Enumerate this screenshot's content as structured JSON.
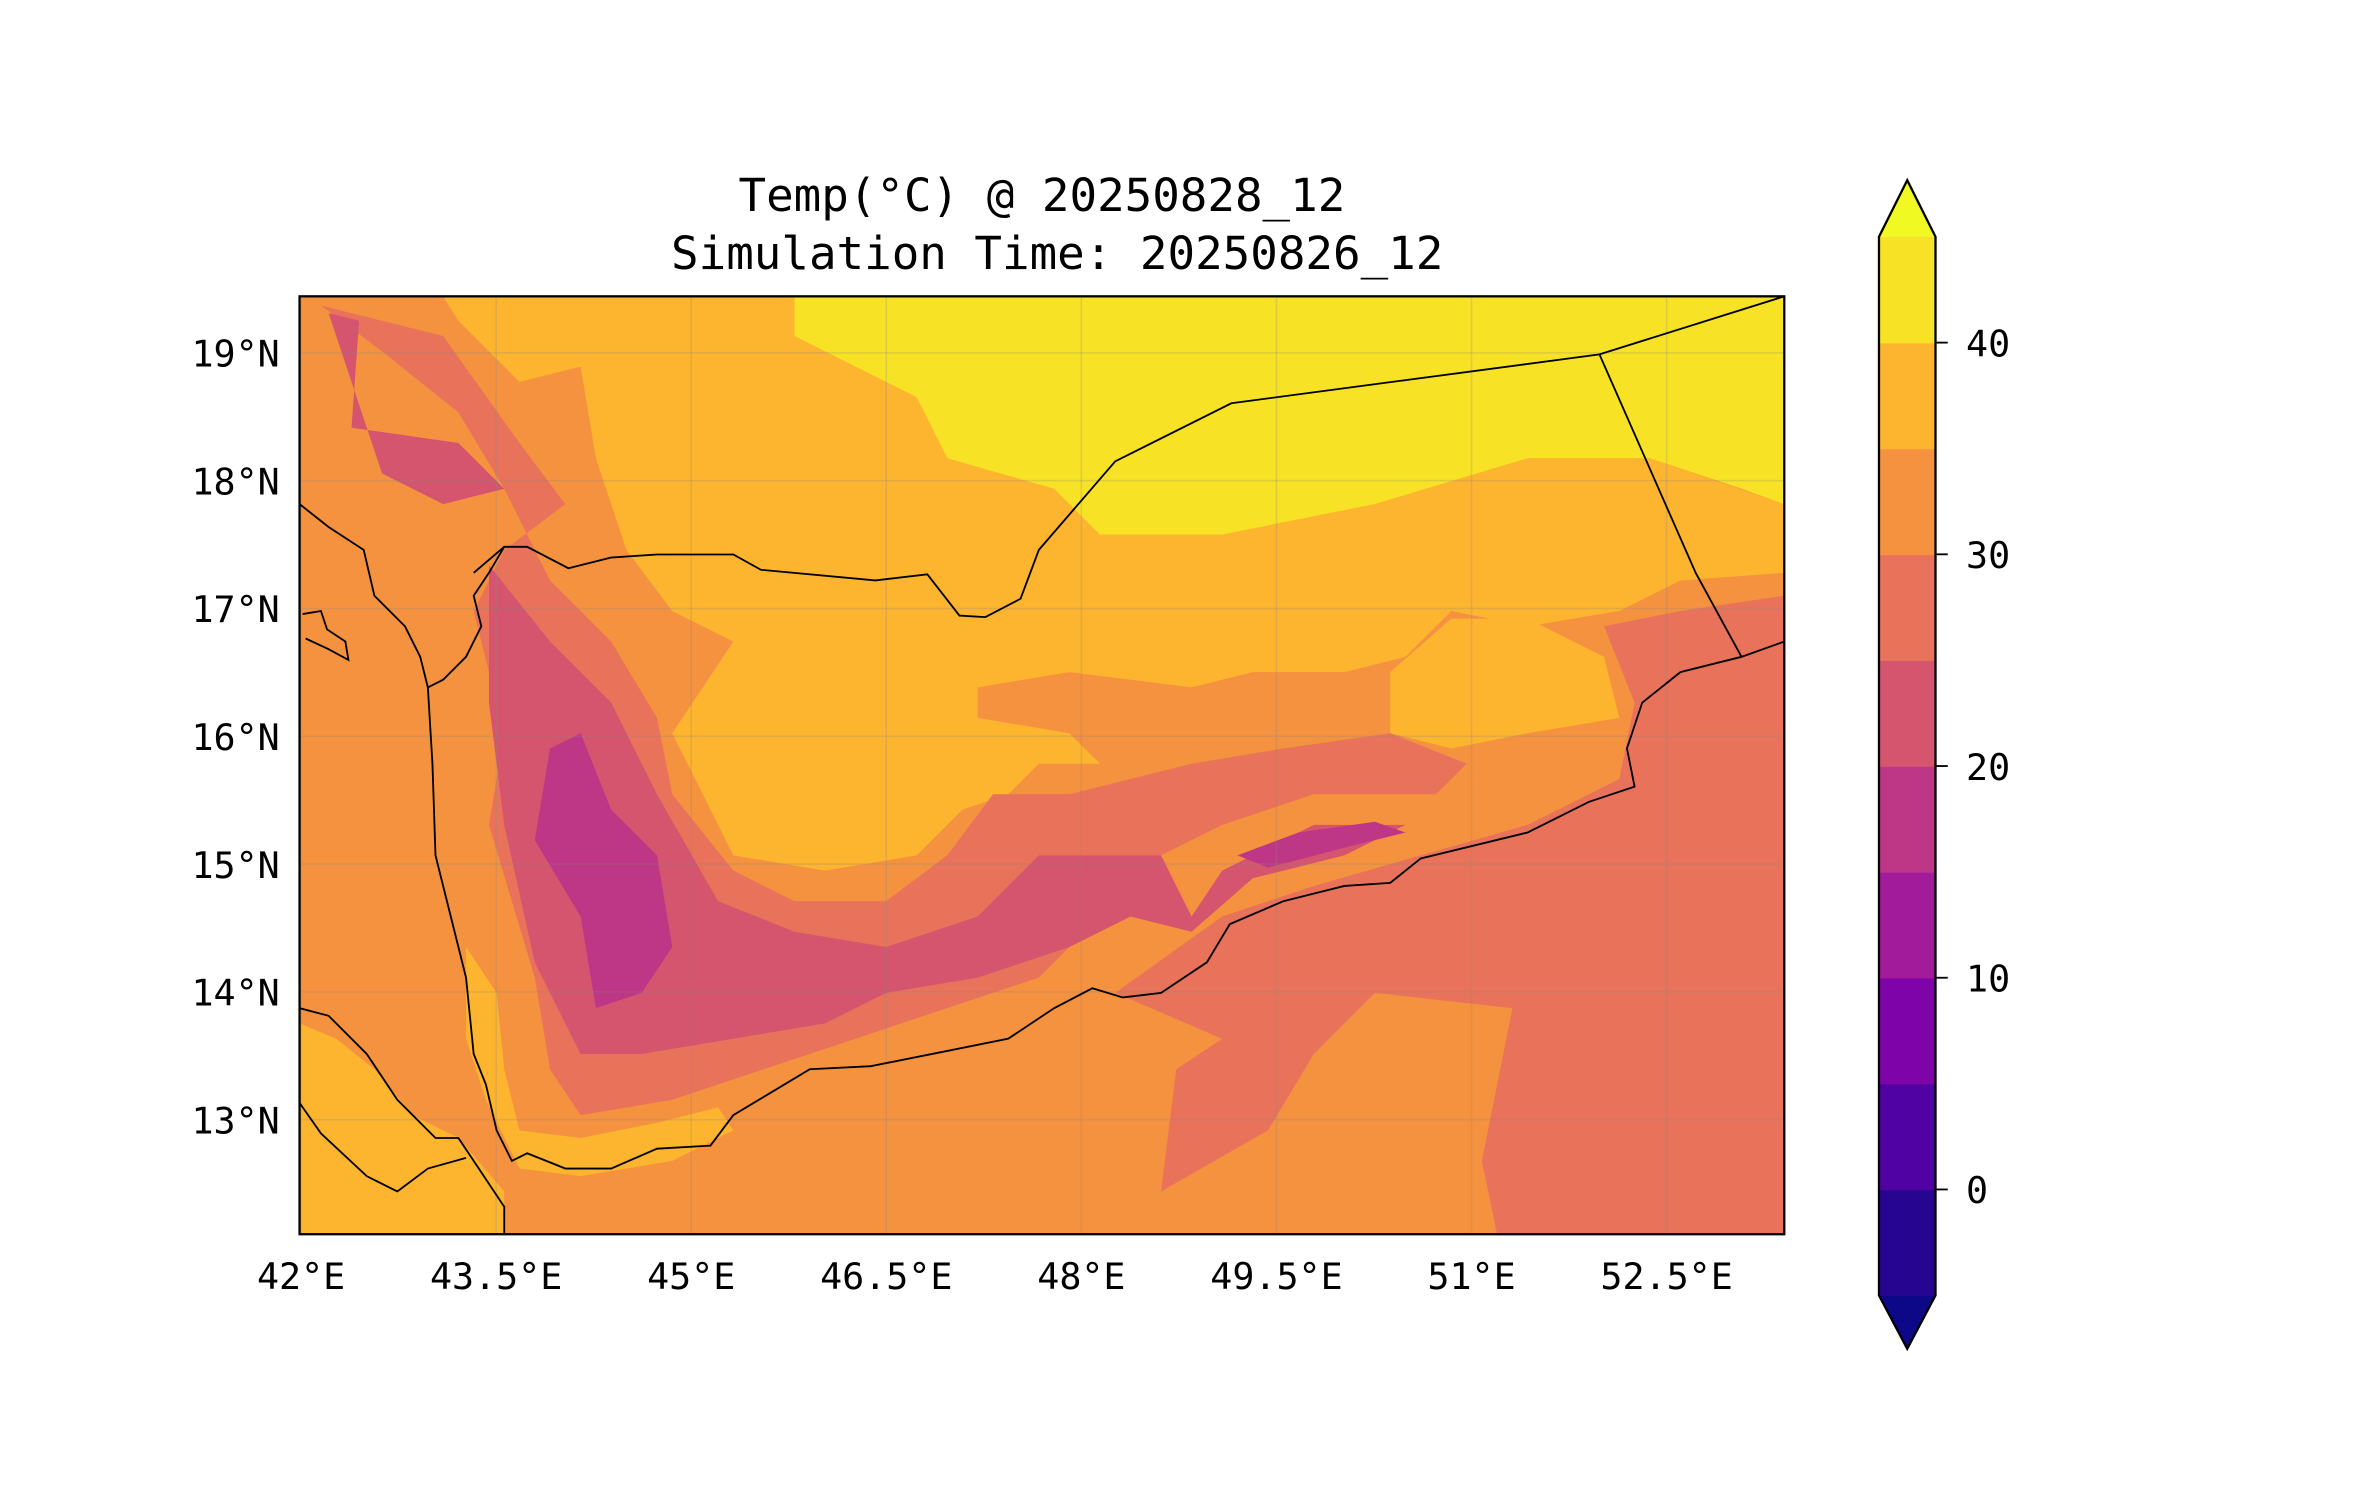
{
  "chart_data": {
    "type": "heatmap",
    "title": "Temp(°C) @ 20250828_12",
    "subtitle": "Simulation Time: 20250826_12",
    "xlabel": "",
    "ylabel": "",
    "x_range_deg_east": [
      42.0,
      53.4
    ],
    "y_range_deg_north": [
      12.1,
      19.45
    ],
    "x_ticks": [
      "42°E",
      "43.5°E",
      "45°E",
      "46.5°E",
      "48°E",
      "49.5°E",
      "51°E",
      "52.5°E"
    ],
    "x_tick_values": [
      42,
      43.5,
      45,
      46.5,
      48,
      49.5,
      51,
      52.5
    ],
    "y_ticks": [
      "13°N",
      "14°N",
      "15°N",
      "16°N",
      "17°N",
      "18°N",
      "19°N"
    ],
    "y_tick_values": [
      13,
      14,
      15,
      16,
      17,
      18,
      19
    ],
    "grid": true,
    "colorbar": {
      "levels": [
        -5,
        0,
        5,
        10,
        15,
        20,
        25,
        30,
        35,
        40,
        45
      ],
      "colors": [
        "#260591",
        "#5002a2",
        "#7e03a8",
        "#a11b9b",
        "#bd3786",
        "#d5546e",
        "#e8735a",
        "#f5923f",
        "#fdb42f",
        "#f7e225"
      ],
      "under_color": "#0d0887",
      "over_color": "#f0f921",
      "tick_labels": [
        "0",
        "10",
        "20",
        "30",
        "40"
      ],
      "tick_values": [
        0,
        10,
        20,
        30,
        40
      ],
      "extend": "both",
      "placement": "right"
    }
  }
}
